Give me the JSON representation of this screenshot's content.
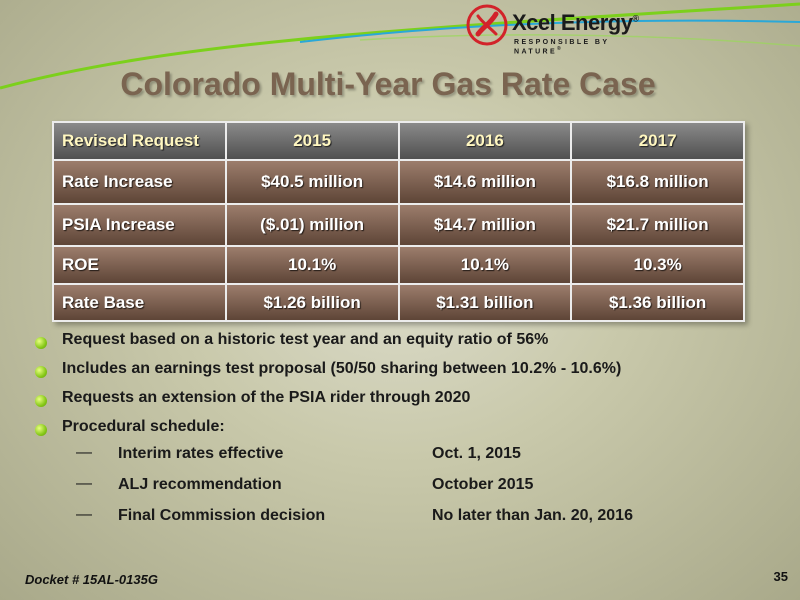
{
  "logo": {
    "name": "Xcel Energy",
    "trademark": "®",
    "tagline": "RESPONSIBLE BY NATURE",
    "tagline_mark": "®"
  },
  "title": "Colorado Multi-Year Gas Rate Case",
  "table": {
    "headers": [
      "Revised Request",
      "2015",
      "2016",
      "2017"
    ],
    "rows": [
      [
        "Rate Increase",
        "$40.5 million",
        "$14.6 million",
        "$16.8 million"
      ],
      [
        "PSIA Increase",
        "($.01) million",
        "$14.7 million",
        "$21.7 million"
      ],
      [
        "ROE",
        "10.1%",
        "10.1%",
        "10.3%"
      ],
      [
        "Rate Base",
        "$1.26 billion",
        "$1.31 billion",
        "$1.36 billion"
      ]
    ]
  },
  "bullets": [
    "Request based on a historic test year and an equity ratio of 56%",
    "Includes an earnings test proposal (50/50 sharing between 10.2% - 10.6%)",
    "Requests an extension of the PSIA rider through 2020",
    "Procedural schedule:"
  ],
  "schedule": [
    {
      "marker": "—",
      "label": "Interim rates effective",
      "value": "Oct. 1, 2015"
    },
    {
      "marker": "—",
      "label": "ALJ recommendation",
      "value": "October 2015"
    },
    {
      "marker": "—",
      "label": "Final Commission decision",
      "value": "No later than Jan. 20, 2016"
    }
  ],
  "footer": {
    "docket": "Docket # 15AL-0135G",
    "page_number": "35"
  },
  "colors": {
    "title": "#7a6450",
    "table_body": "#7a5e4e",
    "table_header": "#6c6c6c",
    "bullet": "#86c818",
    "swoosh_green": "#7cd01c",
    "swoosh_blue": "#2aa8d8",
    "logo_red": "#d2232a"
  }
}
